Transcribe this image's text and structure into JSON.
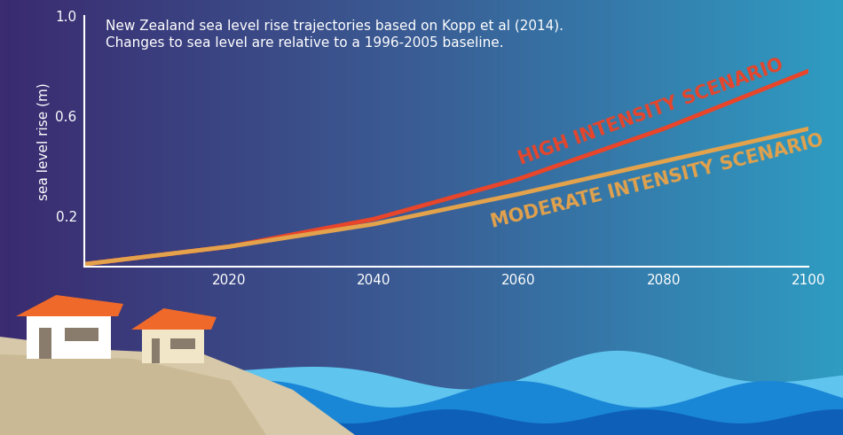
{
  "chart_data": {
    "type": "line",
    "subtitle": "New Zealand sea level rise trajectories based on Kopp et al (2014).\nChanges to sea level are relative to a 1996-2005 baseline.",
    "y_label": "sea level rise (m)",
    "x": [
      2000,
      2020,
      2040,
      2060,
      2080,
      2100
    ],
    "series": [
      {
        "name": "HIGH INTENSITY SCENARIO",
        "color": "#e8452a",
        "values": [
          0.01,
          0.08,
          0.19,
          0.35,
          0.55,
          0.78
        ]
      },
      {
        "name": "MODERATE INTENSITY SCENARIO",
        "color": "#e3a24c",
        "values": [
          0.01,
          0.08,
          0.17,
          0.29,
          0.42,
          0.55
        ]
      }
    ],
    "xlim": [
      2000,
      2100
    ],
    "ylim": [
      0,
      1.0
    ],
    "xticks": [
      2020,
      2040,
      2060,
      2080,
      2100
    ],
    "yticks": [
      0.2,
      0.6,
      1.0
    ],
    "grid": false
  }
}
